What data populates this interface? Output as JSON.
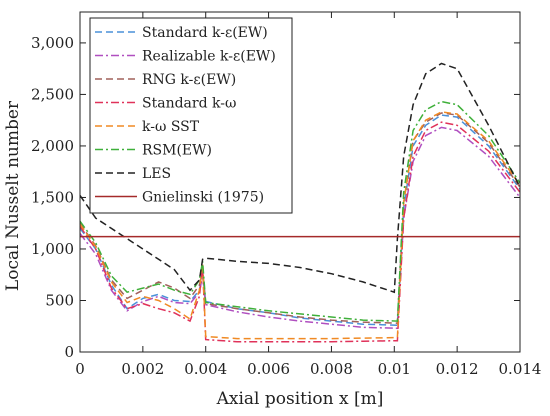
{
  "chart_data": {
    "type": "line",
    "xlabel": "Axial position x [m]",
    "ylabel": "Local Nusselt number",
    "xlim": [
      0,
      0.014
    ],
    "ylim": [
      0,
      3300
    ],
    "xticks": [
      0,
      0.002,
      0.004,
      0.006,
      0.008,
      0.01,
      0.012,
      0.014
    ],
    "xtick_labels": [
      "0",
      "0.002",
      "0.004",
      "0.006",
      "0.008",
      "0.01",
      "0.012",
      "0.014"
    ],
    "yticks": [
      0,
      500,
      1000,
      1500,
      2000,
      2500,
      3000
    ],
    "ytick_labels": [
      "0",
      "500",
      "1,000",
      "1,500",
      "2,000",
      "2,500",
      "3,000"
    ],
    "grid": false,
    "legend_position": "top-left",
    "series": [
      {
        "name": "Standard k-ε(EW)",
        "color": "#4a90d9",
        "dash": "dashed",
        "points": [
          [
            0,
            1200
          ],
          [
            0.0005,
            1000
          ],
          [
            0.001,
            650
          ],
          [
            0.0015,
            420
          ],
          [
            0.002,
            520
          ],
          [
            0.0025,
            560
          ],
          [
            0.003,
            500
          ],
          [
            0.0035,
            490
          ],
          [
            0.0038,
            600
          ],
          [
            0.0039,
            760
          ],
          [
            0.004,
            490
          ],
          [
            0.005,
            420
          ],
          [
            0.006,
            380
          ],
          [
            0.007,
            330
          ],
          [
            0.008,
            300
          ],
          [
            0.009,
            270
          ],
          [
            0.0101,
            260
          ],
          [
            0.0103,
            1400
          ],
          [
            0.0106,
            2000
          ],
          [
            0.011,
            2200
          ],
          [
            0.0115,
            2300
          ],
          [
            0.012,
            2280
          ],
          [
            0.013,
            2000
          ],
          [
            0.014,
            1580
          ]
        ]
      },
      {
        "name": "Realizable k-ε(EW)",
        "color": "#b04fc0",
        "dash": "dashdot",
        "points": [
          [
            0,
            1150
          ],
          [
            0.0005,
            950
          ],
          [
            0.001,
            600
          ],
          [
            0.0015,
            400
          ],
          [
            0.002,
            490
          ],
          [
            0.0025,
            540
          ],
          [
            0.003,
            480
          ],
          [
            0.0035,
            470
          ],
          [
            0.0038,
            580
          ],
          [
            0.0039,
            740
          ],
          [
            0.004,
            460
          ],
          [
            0.005,
            390
          ],
          [
            0.006,
            340
          ],
          [
            0.007,
            300
          ],
          [
            0.008,
            270
          ],
          [
            0.009,
            240
          ],
          [
            0.0101,
            230
          ],
          [
            0.0103,
            1300
          ],
          [
            0.0106,
            1850
          ],
          [
            0.011,
            2100
          ],
          [
            0.0115,
            2180
          ],
          [
            0.012,
            2150
          ],
          [
            0.013,
            1900
          ],
          [
            0.014,
            1500
          ]
        ]
      },
      {
        "name": "RNG k-ε(EW)",
        "color": "#a0605a",
        "dash": "dashed",
        "points": [
          [
            0,
            1250
          ],
          [
            0.0005,
            1030
          ],
          [
            0.001,
            700
          ],
          [
            0.0015,
            520
          ],
          [
            0.002,
            600
          ],
          [
            0.0025,
            680
          ],
          [
            0.003,
            620
          ],
          [
            0.0035,
            520
          ],
          [
            0.0038,
            650
          ],
          [
            0.0039,
            800
          ],
          [
            0.004,
            470
          ],
          [
            0.005,
            420
          ],
          [
            0.006,
            380
          ],
          [
            0.007,
            340
          ],
          [
            0.008,
            310
          ],
          [
            0.009,
            290
          ],
          [
            0.0101,
            280
          ],
          [
            0.0103,
            1450
          ],
          [
            0.0106,
            2050
          ],
          [
            0.011,
            2230
          ],
          [
            0.0115,
            2320
          ],
          [
            0.012,
            2300
          ],
          [
            0.013,
            2030
          ],
          [
            0.014,
            1600
          ]
        ]
      },
      {
        "name": "Standard k-ω",
        "color": "#e0325a",
        "dash": "dashdot",
        "points": [
          [
            0,
            1220
          ],
          [
            0.0005,
            1000
          ],
          [
            0.001,
            620
          ],
          [
            0.0015,
            420
          ],
          [
            0.002,
            470
          ],
          [
            0.0025,
            420
          ],
          [
            0.003,
            380
          ],
          [
            0.0035,
            300
          ],
          [
            0.0038,
            540
          ],
          [
            0.0039,
            830
          ],
          [
            0.004,
            120
          ],
          [
            0.005,
            100
          ],
          [
            0.006,
            100
          ],
          [
            0.007,
            100
          ],
          [
            0.008,
            100
          ],
          [
            0.009,
            105
          ],
          [
            0.0101,
            110
          ],
          [
            0.0103,
            1300
          ],
          [
            0.0106,
            1900
          ],
          [
            0.011,
            2150
          ],
          [
            0.0115,
            2230
          ],
          [
            0.012,
            2200
          ],
          [
            0.013,
            1950
          ],
          [
            0.014,
            1550
          ]
        ]
      },
      {
        "name": "k-ω SST",
        "color": "#f08a24",
        "dash": "dashed",
        "points": [
          [
            0,
            1240
          ],
          [
            0.0005,
            1020
          ],
          [
            0.001,
            680
          ],
          [
            0.0015,
            480
          ],
          [
            0.002,
            540
          ],
          [
            0.0025,
            500
          ],
          [
            0.003,
            420
          ],
          [
            0.0035,
            320
          ],
          [
            0.0038,
            600
          ],
          [
            0.0039,
            860
          ],
          [
            0.004,
            150
          ],
          [
            0.005,
            130
          ],
          [
            0.006,
            130
          ],
          [
            0.007,
            130
          ],
          [
            0.008,
            130
          ],
          [
            0.009,
            135
          ],
          [
            0.0101,
            140
          ],
          [
            0.0103,
            1450
          ],
          [
            0.0106,
            2050
          ],
          [
            0.011,
            2250
          ],
          [
            0.0115,
            2330
          ],
          [
            0.012,
            2310
          ],
          [
            0.013,
            2050
          ],
          [
            0.014,
            1620
          ]
        ]
      },
      {
        "name": "RSM(EW)",
        "color": "#3fb03a",
        "dash": "dashdot",
        "points": [
          [
            0,
            1270
          ],
          [
            0.0005,
            1060
          ],
          [
            0.001,
            740
          ],
          [
            0.0015,
            580
          ],
          [
            0.002,
            620
          ],
          [
            0.0025,
            660
          ],
          [
            0.003,
            600
          ],
          [
            0.0035,
            560
          ],
          [
            0.0038,
            700
          ],
          [
            0.0039,
            880
          ],
          [
            0.004,
            480
          ],
          [
            0.005,
            440
          ],
          [
            0.006,
            400
          ],
          [
            0.007,
            370
          ],
          [
            0.008,
            340
          ],
          [
            0.009,
            310
          ],
          [
            0.0101,
            300
          ],
          [
            0.0103,
            1550
          ],
          [
            0.0106,
            2150
          ],
          [
            0.011,
            2350
          ],
          [
            0.0115,
            2430
          ],
          [
            0.012,
            2400
          ],
          [
            0.013,
            2100
          ],
          [
            0.014,
            1640
          ]
        ]
      },
      {
        "name": "LES",
        "color": "#222222",
        "dash": "dashed",
        "points": [
          [
            0,
            1520
          ],
          [
            0.0005,
            1300
          ],
          [
            0.001,
            1200
          ],
          [
            0.0015,
            1100
          ],
          [
            0.002,
            1000
          ],
          [
            0.0025,
            900
          ],
          [
            0.003,
            800
          ],
          [
            0.0035,
            600
          ],
          [
            0.0038,
            700
          ],
          [
            0.0039,
            900
          ],
          [
            0.004,
            910
          ],
          [
            0.005,
            880
          ],
          [
            0.006,
            860
          ],
          [
            0.007,
            820
          ],
          [
            0.008,
            760
          ],
          [
            0.009,
            680
          ],
          [
            0.01,
            580
          ],
          [
            0.0101,
            1100
          ],
          [
            0.0103,
            1900
          ],
          [
            0.0106,
            2400
          ],
          [
            0.011,
            2700
          ],
          [
            0.0115,
            2800
          ],
          [
            0.012,
            2750
          ],
          [
            0.013,
            2200
          ],
          [
            0.014,
            1600
          ]
        ]
      },
      {
        "name": "Gnielinski (1975)",
        "color": "#a52a2a",
        "dash": "solid",
        "points": [
          [
            0,
            1120
          ],
          [
            0.014,
            1120
          ]
        ]
      }
    ]
  }
}
